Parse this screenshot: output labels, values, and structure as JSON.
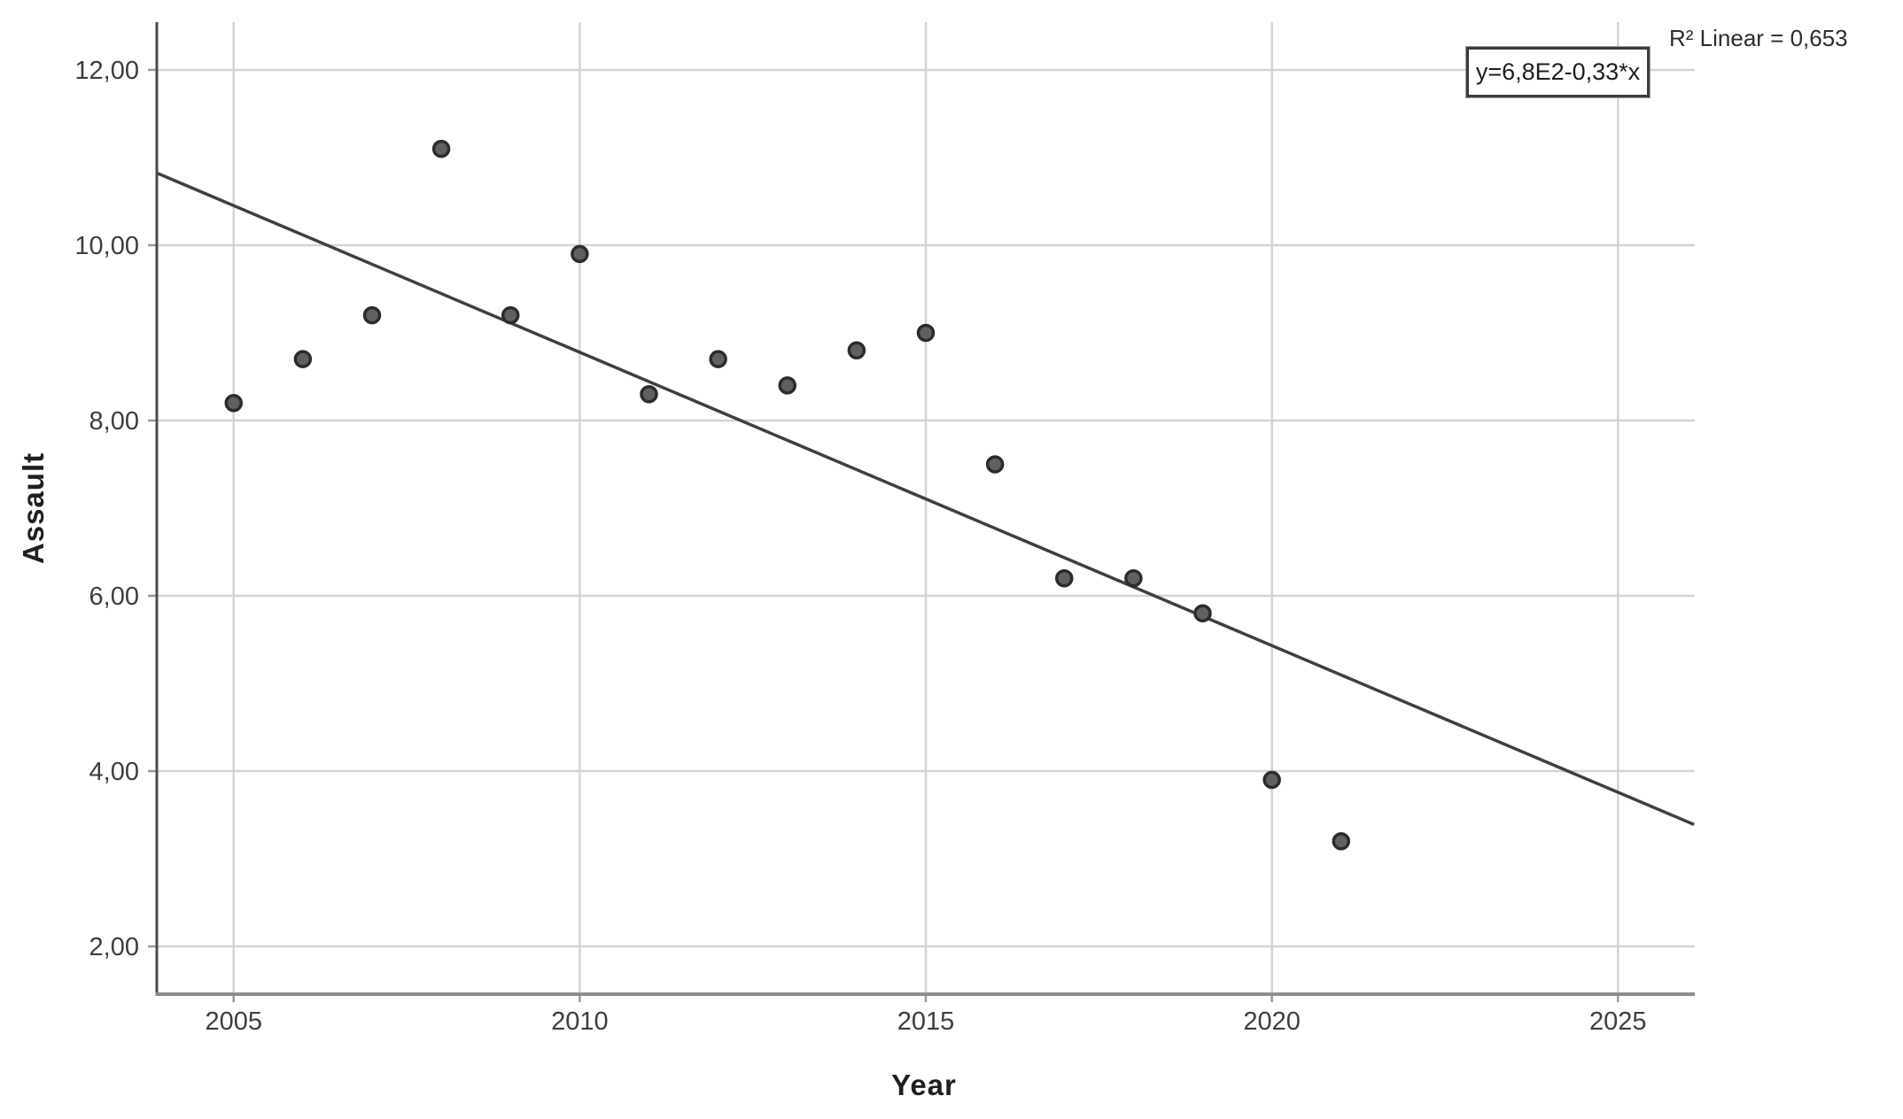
{
  "page": {
    "background": "#ffffff"
  },
  "annotations": {
    "equation": "y=6,8E2-0,33*x",
    "r_squared": "R² Linear = 0,653"
  },
  "chart_data": {
    "type": "scatter",
    "title": "",
    "xlabel": "Year",
    "ylabel": "Assault",
    "x": [
      2005,
      2006,
      2007,
      2008,
      2009,
      2010,
      2011,
      2012,
      2013,
      2014,
      2015,
      2016,
      2017,
      2018,
      2019,
      2020,
      2021
    ],
    "y": [
      8.2,
      8.7,
      9.2,
      11.1,
      9.2,
      9.9,
      8.3,
      8.7,
      8.4,
      8.8,
      9.0,
      7.5,
      6.2,
      6.2,
      5.8,
      3.9,
      3.2
    ],
    "trend_line": {
      "equation": "y=6,8E2-0,33*x",
      "r2_linear": 0.653,
      "x_start": 2003.9,
      "y_start": 10.82,
      "x_end": 2026.1,
      "y_end": 3.39
    },
    "x_ticks": [
      2005,
      2010,
      2015,
      2020,
      2025
    ],
    "x_tick_labels": [
      "2005",
      "2010",
      "2015",
      "2020",
      "2025"
    ],
    "y_ticks": [
      2,
      4,
      6,
      8,
      10,
      12
    ],
    "y_tick_labels": [
      "2,00",
      "4,00",
      "6,00",
      "8,00",
      "10,00",
      "12,00"
    ],
    "xlim": [
      2003.89,
      2026.11
    ],
    "ylim": [
      1.455,
      12.545
    ],
    "grid": true,
    "legend": false
  },
  "style": {
    "grid_color": "#d4d4d4",
    "y_axis_color": "#4a4a4a",
    "x_axis_color": "#8d8d8d",
    "tick_color": "#9a9a9a",
    "tick_label_color": "#3d3d3d",
    "point_fill": "#606060",
    "point_stroke": "#2b2b2b",
    "trend_color": "#3f3f3f"
  }
}
